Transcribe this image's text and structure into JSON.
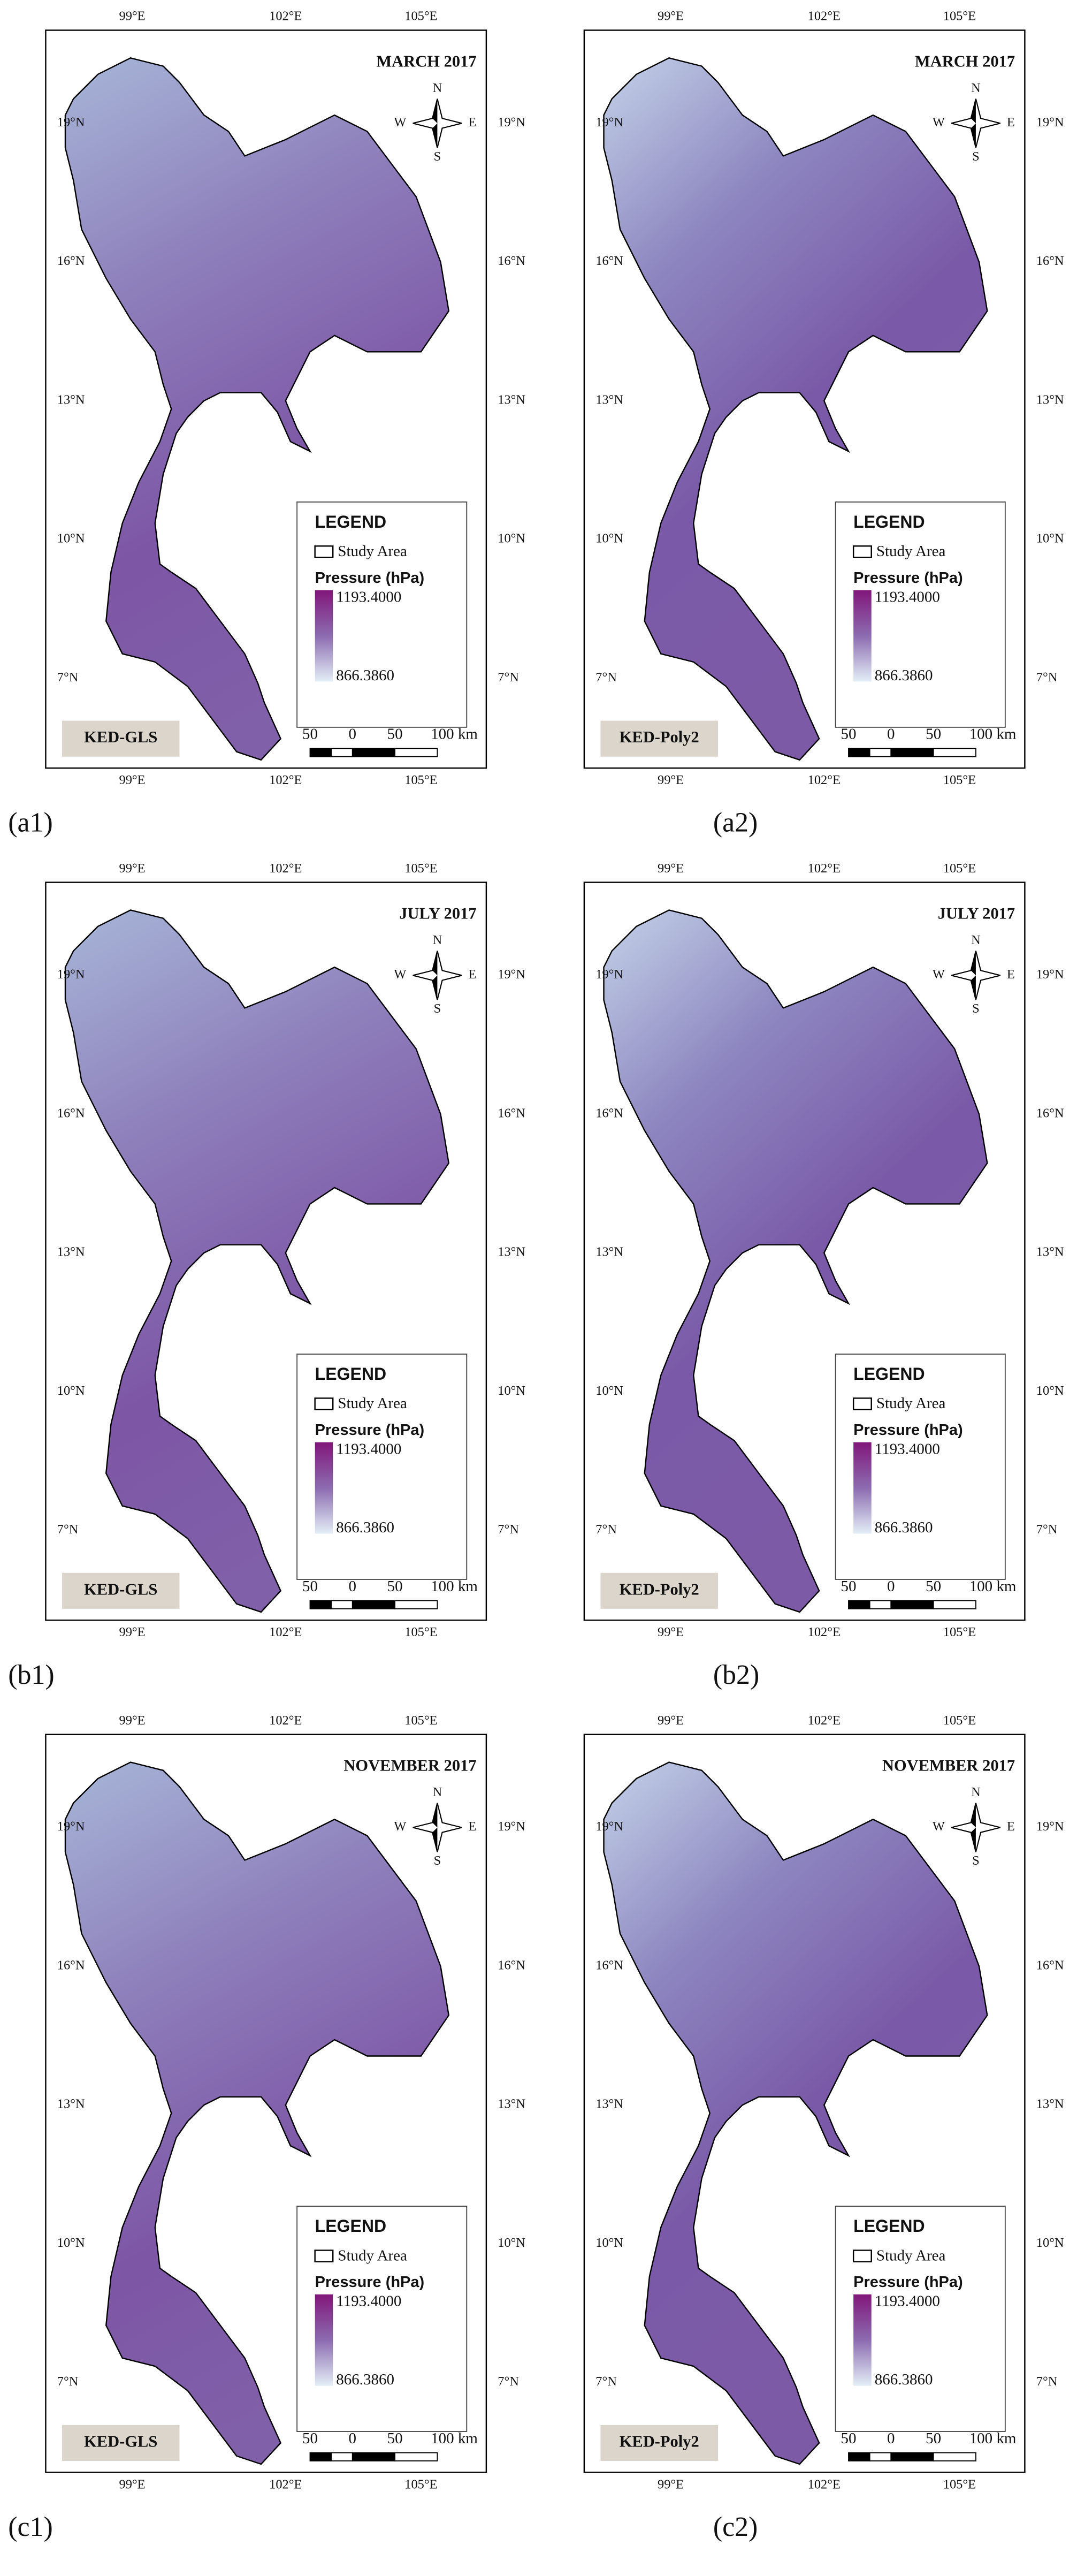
{
  "panels": [
    {
      "title": "MARCH 2017",
      "method": "KED-GLS",
      "label": "(a1)"
    },
    {
      "title": "MARCH 2017",
      "method": "KED-Poly2",
      "label": "(a2)"
    },
    {
      "title": "JULY 2017",
      "method": "KED-GLS",
      "label": "(b1)"
    },
    {
      "title": "JULY 2017",
      "method": "KED-Poly2",
      "label": "(b2)"
    },
    {
      "title": "NOVEMBER 2017",
      "method": "KED-GLS",
      "label": "(c1)"
    },
    {
      "title": "NOVEMBER 2017",
      "method": "KED-Poly2",
      "label": "(c2)"
    }
  ],
  "lon_ticks": [
    "99°E",
    "102°E",
    "105°E"
  ],
  "lat_ticks": [
    "19°N",
    "16°N",
    "13°N",
    "10°N",
    "7°N"
  ],
  "compass": {
    "n": "N",
    "e": "E",
    "s": "S",
    "w": "W"
  },
  "legend": {
    "title": "LEGEND",
    "study_area": "Study Area",
    "variable": "Pressure (hPa)",
    "max": "1193.4000",
    "min": "866.3860"
  },
  "scale_bar": [
    "50",
    "0",
    "50",
    "100 km"
  ]
}
